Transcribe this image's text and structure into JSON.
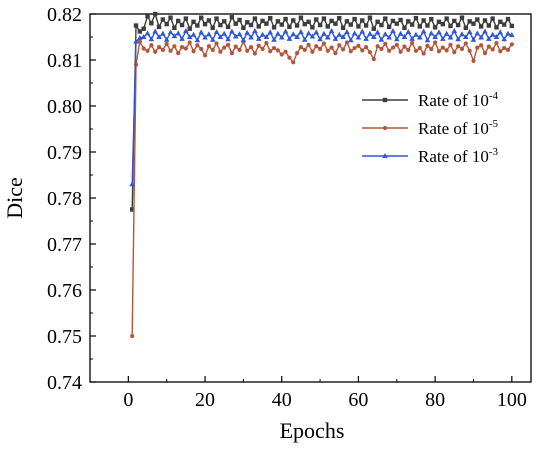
{
  "chart_data": {
    "type": "line",
    "title": "",
    "xlabel": "Epochs",
    "ylabel": "Dice",
    "xlim": [
      -10,
      105
    ],
    "ylim": [
      0.74,
      0.82
    ],
    "xticks": [
      0,
      20,
      40,
      60,
      80,
      100
    ],
    "yticks": [
      0.74,
      0.75,
      0.76,
      0.77,
      0.78,
      0.79,
      0.8,
      0.81,
      0.82
    ],
    "xtick_labels": [
      "0",
      "20",
      "40",
      "60",
      "80",
      "100"
    ],
    "ytick_labels": [
      "0.74",
      "0.75",
      "0.76",
      "0.77",
      "0.78",
      "0.79",
      "0.80",
      "0.81",
      "0.82"
    ],
    "grid": false,
    "legend_position": "upper-right",
    "series": [
      {
        "name": "Rate of 10⁻⁴",
        "legend_label": {
          "base": "Rate of 10",
          "exponent": "-4"
        },
        "color": "#3d3d3d",
        "marker": "square",
        "x": [
          1,
          2,
          3,
          4,
          5,
          6,
          7,
          8,
          9,
          10,
          11,
          12,
          13,
          14,
          15,
          16,
          17,
          18,
          19,
          20,
          21,
          22,
          23,
          24,
          25,
          26,
          27,
          28,
          29,
          30,
          31,
          32,
          33,
          34,
          35,
          36,
          37,
          38,
          39,
          40,
          41,
          42,
          43,
          44,
          45,
          46,
          47,
          48,
          49,
          50,
          51,
          52,
          53,
          54,
          55,
          56,
          57,
          58,
          59,
          60,
          61,
          62,
          63,
          64,
          65,
          66,
          67,
          68,
          69,
          70,
          71,
          72,
          73,
          74,
          75,
          76,
          77,
          78,
          79,
          80,
          81,
          82,
          83,
          84,
          85,
          86,
          87,
          88,
          89,
          90,
          91,
          92,
          93,
          94,
          95,
          96,
          97,
          98,
          99,
          100
        ],
        "values": [
          0.7775,
          0.8175,
          0.8162,
          0.8168,
          0.8195,
          0.818,
          0.82,
          0.8172,
          0.8188,
          0.8178,
          0.8192,
          0.817,
          0.8185,
          0.8176,
          0.819,
          0.8168,
          0.8183,
          0.8175,
          0.8192,
          0.8178,
          0.8186,
          0.817,
          0.819,
          0.8176,
          0.8184,
          0.8172,
          0.8193,
          0.8179,
          0.8187,
          0.817,
          0.8182,
          0.8176,
          0.819,
          0.8173,
          0.8185,
          0.8179,
          0.8191,
          0.8171,
          0.8184,
          0.8177,
          0.8189,
          0.8172,
          0.8186,
          0.8175,
          0.8192,
          0.8178,
          0.8183,
          0.8171,
          0.8188,
          0.8176,
          0.819,
          0.8173,
          0.8185,
          0.8179,
          0.8191,
          0.817,
          0.8184,
          0.8177,
          0.8189,
          0.8173,
          0.8186,
          0.8175,
          0.8192,
          0.8168,
          0.8183,
          0.8176,
          0.819,
          0.8172,
          0.8185,
          0.8179,
          0.8187,
          0.817,
          0.8184,
          0.8177,
          0.8191,
          0.8173,
          0.8186,
          0.8175,
          0.8189,
          0.8171,
          0.8183,
          0.8178,
          0.819,
          0.8174,
          0.8185,
          0.8176,
          0.8192,
          0.817,
          0.8184,
          0.8179,
          0.8188,
          0.8173,
          0.8186,
          0.8175,
          0.819,
          0.8171,
          0.8183,
          0.8177,
          0.8189,
          0.8174
        ]
      },
      {
        "name": "Rate of 10⁻⁵",
        "legend_label": {
          "base": "Rate of 10",
          "exponent": "-5"
        },
        "color": "#b5563a",
        "marker": "circle",
        "x": [
          1,
          2,
          3,
          4,
          5,
          6,
          7,
          8,
          9,
          10,
          11,
          12,
          13,
          14,
          15,
          16,
          17,
          18,
          19,
          20,
          21,
          22,
          23,
          24,
          25,
          26,
          27,
          28,
          29,
          30,
          31,
          32,
          33,
          34,
          35,
          36,
          37,
          38,
          39,
          40,
          41,
          42,
          43,
          44,
          45,
          46,
          47,
          48,
          49,
          50,
          51,
          52,
          53,
          54,
          55,
          56,
          57,
          58,
          59,
          60,
          61,
          62,
          63,
          64,
          65,
          66,
          67,
          68,
          69,
          70,
          71,
          72,
          73,
          74,
          75,
          76,
          77,
          78,
          79,
          80,
          81,
          82,
          83,
          84,
          85,
          86,
          87,
          88,
          89,
          90,
          91,
          92,
          93,
          94,
          95,
          96,
          97,
          98,
          99,
          100
        ],
        "values": [
          0.75,
          0.809,
          0.814,
          0.8125,
          0.812,
          0.8132,
          0.8118,
          0.8128,
          0.8122,
          0.8135,
          0.812,
          0.813,
          0.8115,
          0.8128,
          0.8125,
          0.8138,
          0.8119,
          0.8132,
          0.8124,
          0.811,
          0.813,
          0.8122,
          0.8136,
          0.8118,
          0.8127,
          0.8133,
          0.8115,
          0.8129,
          0.8122,
          0.814,
          0.812,
          0.8128,
          0.8114,
          0.8131,
          0.8124,
          0.8137,
          0.8119,
          0.8126,
          0.8121,
          0.8112,
          0.8118,
          0.8105,
          0.8095,
          0.8115,
          0.8128,
          0.8122,
          0.8133,
          0.8118,
          0.813,
          0.8124,
          0.8136,
          0.812,
          0.8127,
          0.8115,
          0.8132,
          0.8123,
          0.8138,
          0.8119,
          0.8126,
          0.8131,
          0.8121,
          0.8128,
          0.8117,
          0.8102,
          0.813,
          0.8124,
          0.8135,
          0.812,
          0.8127,
          0.8133,
          0.8118,
          0.8129,
          0.8122,
          0.8137,
          0.812,
          0.8126,
          0.8114,
          0.8131,
          0.8124,
          0.8138,
          0.8119,
          0.8127,
          0.8121,
          0.8133,
          0.8117,
          0.813,
          0.8124,
          0.8136,
          0.812,
          0.8098,
          0.8127,
          0.8132,
          0.8115,
          0.8129,
          0.8123,
          0.8137,
          0.8119,
          0.8126,
          0.8122,
          0.8134
        ]
      },
      {
        "name": "Rate of 10⁻³",
        "legend_label": {
          "base": "Rate of 10",
          "exponent": "-3"
        },
        "color": "#2f57d6",
        "marker": "triangle",
        "x": [
          1,
          2,
          3,
          4,
          5,
          6,
          7,
          8,
          9,
          10,
          11,
          12,
          13,
          14,
          15,
          16,
          17,
          18,
          19,
          20,
          21,
          22,
          23,
          24,
          25,
          26,
          27,
          28,
          29,
          30,
          31,
          32,
          33,
          34,
          35,
          36,
          37,
          38,
          39,
          40,
          41,
          42,
          43,
          44,
          45,
          46,
          47,
          48,
          49,
          50,
          51,
          52,
          53,
          54,
          55,
          56,
          57,
          58,
          59,
          60,
          61,
          62,
          63,
          64,
          65,
          66,
          67,
          68,
          69,
          70,
          71,
          72,
          73,
          74,
          75,
          76,
          77,
          78,
          79,
          80,
          81,
          82,
          83,
          84,
          85,
          86,
          87,
          88,
          89,
          90,
          91,
          92,
          93,
          94,
          95,
          96,
          97,
          98,
          99,
          100
        ],
        "values": [
          0.783,
          0.814,
          0.8148,
          0.815,
          0.8158,
          0.8145,
          0.8162,
          0.815,
          0.8157,
          0.8144,
          0.816,
          0.8152,
          0.8158,
          0.8146,
          0.8163,
          0.815,
          0.8155,
          0.8143,
          0.816,
          0.8149,
          0.8156,
          0.8144,
          0.8161,
          0.815,
          0.8157,
          0.8145,
          0.8162,
          0.8151,
          0.8156,
          0.8143,
          0.8159,
          0.8149,
          0.8163,
          0.8146,
          0.8155,
          0.815,
          0.816,
          0.8144,
          0.8157,
          0.8149,
          0.8162,
          0.8146,
          0.8156,
          0.815,
          0.8161,
          0.8144,
          0.8158,
          0.8151,
          0.816,
          0.8145,
          0.8157,
          0.8149,
          0.8163,
          0.8146,
          0.8155,
          0.815,
          0.8161,
          0.8143,
          0.8158,
          0.8149,
          0.8162,
          0.8146,
          0.8157,
          0.815,
          0.816,
          0.8144,
          0.8156,
          0.8149,
          0.8163,
          0.8145,
          0.8157,
          0.815,
          0.8161,
          0.8146,
          0.8155,
          0.8149,
          0.8162,
          0.8143,
          0.8158,
          0.815,
          0.816,
          0.8146,
          0.8157,
          0.8149,
          0.8163,
          0.8145,
          0.8156,
          0.815,
          0.8161,
          0.8144,
          0.8158,
          0.8149,
          0.8162,
          0.8146,
          0.8155,
          0.815,
          0.816,
          0.8145,
          0.8157,
          0.8154
        ]
      }
    ]
  }
}
